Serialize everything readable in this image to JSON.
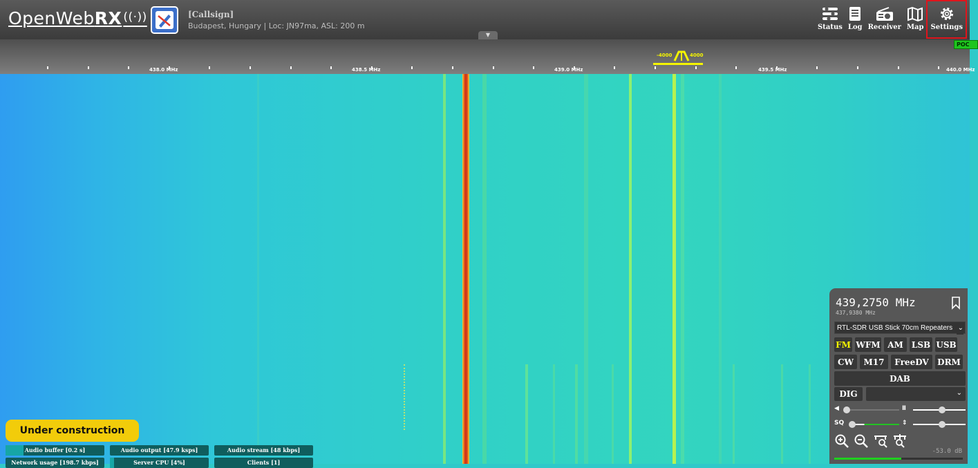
{
  "header": {
    "logo_text": "OpenWeb",
    "logo_bold": "RX",
    "receiver_title": "[Callsign]",
    "receiver_desc": "Budapest, Hungary | Loc: JN97ma, ASL: 200 m",
    "nav": [
      {
        "label": "Status",
        "icon": "status-icon"
      },
      {
        "label": "Log",
        "icon": "log-icon"
      },
      {
        "label": "Receiver",
        "icon": "receiver-icon"
      },
      {
        "label": "Map",
        "icon": "map-icon"
      },
      {
        "label": "Settings",
        "icon": "gear-icon"
      }
    ]
  },
  "scale": {
    "labels": [
      "438.0 MHz",
      "438.5 MHz",
      "439.0 MHz",
      "439.5 MHz",
      "440.0 MHz"
    ],
    "filter_low": "-4000",
    "filter_high": "4000",
    "poc_label": "POC"
  },
  "construction_banner": "Under construction",
  "status_bars": [
    {
      "label": "Audio buffer [0.2 s]",
      "level": 0.18
    },
    {
      "label": "Audio output [47.9 ksps]",
      "level": 0.0
    },
    {
      "label": "Audio stream [48 kbps]",
      "level": 0.0
    },
    {
      "label": "Network usage [198.7 kbps]",
      "level": 0.0
    },
    {
      "label": "Server CPU [4%]",
      "level": 0.04
    },
    {
      "label": "Clients [1]",
      "level": 0.0
    }
  ],
  "panel": {
    "frequency": "439,2750 MHz",
    "offset_frequency": "437,9380 MHz",
    "profile": "RTL-SDR USB Stick 70cm Repeaters",
    "modes_row1": [
      "FM",
      "WFM",
      "AM",
      "LSB",
      "USB"
    ],
    "modes_row2": [
      "CW",
      "M17",
      "FreeDV",
      "DRM"
    ],
    "modes_row3": [
      "DAB"
    ],
    "active_mode": "FM",
    "dig_label": "DIG",
    "sq_label": "SQ",
    "smeter_db": "-53.0 dB",
    "smeter_level": 0.52,
    "volume_level": 0.05,
    "squelch_level": 0.05,
    "nr_level": 0.55,
    "gain_level": 0.55
  },
  "colors": {
    "header_bg": "#4a4a4a",
    "accent_yellow": "#f5f500",
    "banner": "#f2cc0a",
    "highlight_box": "#e0141c",
    "signal_peak": "#e85a1a"
  }
}
